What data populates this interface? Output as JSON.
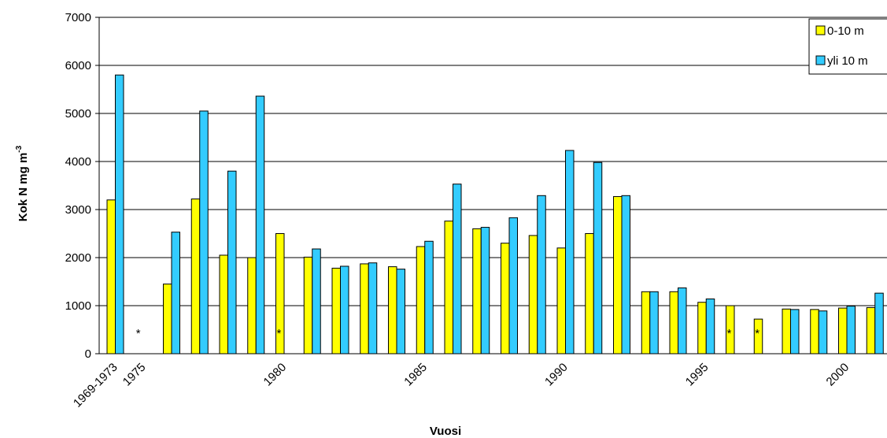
{
  "chart_data": {
    "type": "bar",
    "title": "",
    "xlabel": "Vuosi",
    "ylabel": "Kok N mg m",
    "ylabel_superscript": "-3",
    "ylim": [
      0,
      7000
    ],
    "yticks": [
      0,
      1000,
      2000,
      3000,
      4000,
      5000,
      6000,
      7000
    ],
    "grid": true,
    "legend_position": "top-right",
    "categories": [
      "1969-1973",
      "1975",
      "1976",
      "1977",
      "1978",
      "1979",
      "1980",
      "1981",
      "1982",
      "1983",
      "1984",
      "1985",
      "1986",
      "1987",
      "1988",
      "1989",
      "1990",
      "1991",
      "1992",
      "1993",
      "1994",
      "1995",
      "1996",
      "1997",
      "1998",
      "1999",
      "2000",
      "2001"
    ],
    "xtick_labels": [
      {
        "label": "1969-1973",
        "category_index": 0
      },
      {
        "label": "1975",
        "category_index": 1
      },
      {
        "label": "1980",
        "category_index": 6
      },
      {
        "label": "1985",
        "category_index": 11
      },
      {
        "label": "1990",
        "category_index": 16
      },
      {
        "label": "1995",
        "category_index": 21
      },
      {
        "label": "2000",
        "category_index": 26
      }
    ],
    "series": [
      {
        "name": "0-10 m",
        "color": "#ffff00",
        "values": [
          3200,
          null,
          1450,
          3220,
          2050,
          2000,
          2500,
          2010,
          1780,
          1870,
          1810,
          2230,
          2760,
          2600,
          2300,
          2460,
          2200,
          2500,
          3270,
          1290,
          1290,
          1070,
          1000,
          720,
          930,
          920,
          950,
          960
        ]
      },
      {
        "name": "yli 10 m",
        "color": "#33ccff",
        "values": [
          5800,
          null,
          2530,
          5050,
          3800,
          5360,
          null,
          2180,
          1820,
          1890,
          1760,
          2340,
          3530,
          2630,
          2830,
          3290,
          4230,
          3980,
          3290,
          1290,
          1370,
          1140,
          null,
          null,
          920,
          890,
          990,
          1260
        ]
      }
    ],
    "missing_markers": [
      {
        "category_index": 1,
        "symbol": "*"
      },
      {
        "category_index": 6,
        "symbol": "*"
      },
      {
        "category_index": 22,
        "symbol": "*"
      },
      {
        "category_index": 23,
        "symbol": "*"
      }
    ]
  }
}
